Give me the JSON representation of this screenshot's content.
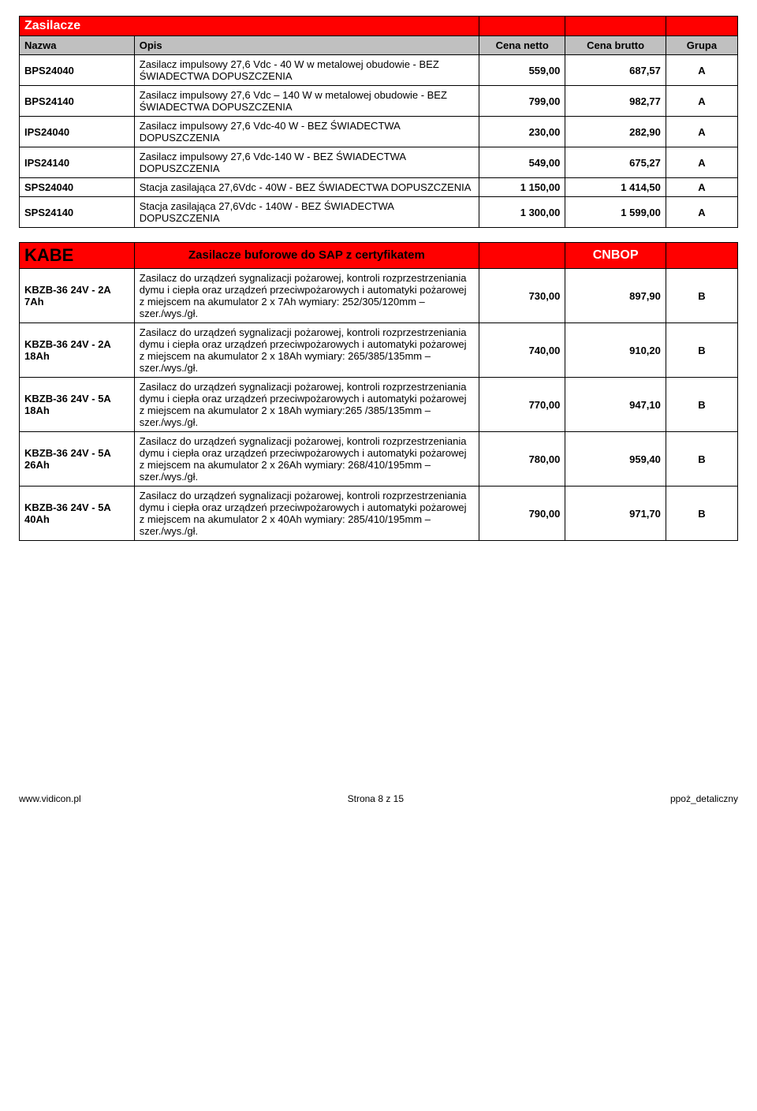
{
  "tableA": {
    "title": "Zasilacze",
    "headers": {
      "name": "Nazwa",
      "desc": "Opis",
      "net": "Cena netto",
      "gross": "Cena brutto",
      "group": "Grupa"
    },
    "rows": [
      {
        "name": "BPS24040",
        "desc": "Zasilacz impulsowy 27,6 Vdc - 40 W w metalowej obudowie - BEZ ŚWIADECTWA DOPUSZCZENIA",
        "net": "559,00",
        "gross": "687,57",
        "group": "A"
      },
      {
        "name": "BPS24140",
        "desc": "Zasilacz impulsowy 27,6 Vdc – 140 W w metalowej obudowie - BEZ ŚWIADECTWA DOPUSZCZENIA",
        "net": "799,00",
        "gross": "982,77",
        "group": "A"
      },
      {
        "name": "IPS24040",
        "desc": "Zasilacz impulsowy 27,6 Vdc-40 W - BEZ ŚWIADECTWA DOPUSZCZENIA",
        "net": "230,00",
        "gross": "282,90",
        "group": "A"
      },
      {
        "name": "IPS24140",
        "desc": "Zasilacz impulsowy 27,6 Vdc-140 W - BEZ ŚWIADECTWA DOPUSZCZENIA",
        "net": "549,00",
        "gross": "675,27",
        "group": "A"
      },
      {
        "name": "SPS24040",
        "desc": "Stacja zasilająca 27,6Vdc - 40W - BEZ ŚWIADECTWA DOPUSZCZENIA",
        "net": "1 150,00",
        "gross": "1 414,50",
        "group": "A"
      },
      {
        "name": "SPS24140",
        "desc": "Stacja zasilająca 27,6Vdc - 140W - BEZ ŚWIADECTWA DOPUSZCZENIA",
        "net": "1 300,00",
        "gross": "1 599,00",
        "group": "A"
      }
    ]
  },
  "tableB": {
    "brand": "KABE",
    "subtitle": "Zasilacze buforowe do SAP z certyfikatem",
    "cert": "CNBOP",
    "rows": [
      {
        "name": "KBZB-36 24V - 2A 7Ah",
        "desc": "Zasilacz do urządzeń sygnalizacji pożarowej, kontroli rozprzestrzeniania dymu i ciepła oraz urządzeń przeciwpożarowych i automatyki pożarowej z miejscem na akumulator 2 x 7Ah wymiary: 252/305/120mm –szer./wys./gł.",
        "net": "730,00",
        "gross": "897,90",
        "group": "B"
      },
      {
        "name": "KBZB-36 24V - 2A 18Ah",
        "desc": "Zasilacz do urządzeń sygnalizacji pożarowej, kontroli rozprzestrzeniania dymu i ciepła oraz urządzeń przeciwpożarowych i automatyki pożarowej z miejscem na akumulator 2 x 18Ah wymiary: 265/385/135mm –szer./wys./gł.",
        "net": "740,00",
        "gross": "910,20",
        "group": "B"
      },
      {
        "name": "KBZB-36 24V - 5A 18Ah",
        "desc": "Zasilacz do urządzeń sygnalizacji pożarowej, kontroli rozprzestrzeniania dymu i ciepła oraz urządzeń przeciwpożarowych i automatyki pożarowej z miejscem na akumulator 2 x 18Ah wymiary:265 /385/135mm – szer./wys./gł.",
        "net": "770,00",
        "gross": "947,10",
        "group": "B"
      },
      {
        "name": "KBZB-36 24V - 5A 26Ah",
        "desc": "Zasilacz do urządzeń sygnalizacji pożarowej, kontroli rozprzestrzeniania dymu i ciepła oraz urządzeń przeciwpożarowych i automatyki pożarowej z miejscem na akumulator 2 x 26Ah wymiary: 268/410/195mm – szer./wys./gł.",
        "net": "780,00",
        "gross": "959,40",
        "group": "B"
      },
      {
        "name": "KBZB-36 24V - 5A 40Ah",
        "desc": "Zasilacz do urządzeń sygnalizacji pożarowej, kontroli rozprzestrzeniania dymu i ciepła oraz urządzeń przeciwpożarowych i automatyki pożarowej z miejscem na akumulator 2 x 40Ah wymiary: 285/410/195mm – szer./wys./gł.",
        "net": "790,00",
        "gross": "971,70",
        "group": "B"
      }
    ]
  },
  "footer": {
    "left": "www.vidicon.pl",
    "center": "Strona 8 z 15",
    "right": "ppoż_detaliczny"
  },
  "colors": {
    "header_bg": "#ff0000",
    "subheader_bg": "#c0c0c0",
    "border": "#000000",
    "text": "#000000",
    "background": "#ffffff"
  }
}
